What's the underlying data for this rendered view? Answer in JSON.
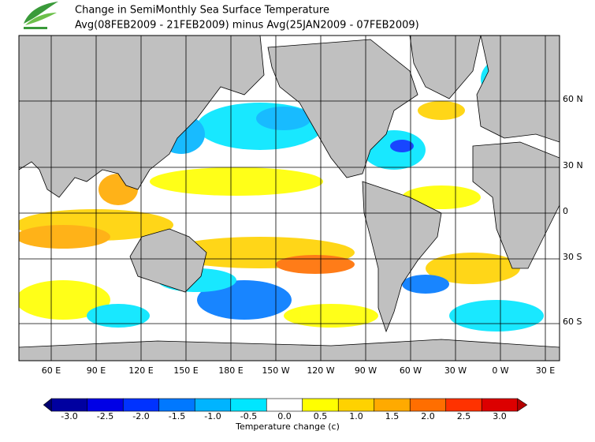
{
  "header": {
    "title": "Change in SemiMonthly Sea Surface Temperature",
    "subtitle": "Avg(08FEB2009 - 21FEB2009) minus Avg(25JAN2009 - 07FEB2009)"
  },
  "map": {
    "lon_labels": [
      "60 E",
      "90 E",
      "120 E",
      "150 E",
      "180 E",
      "150 W",
      "120 W",
      "90 W",
      "60 W",
      "30 W",
      "0 W",
      "30 E"
    ],
    "lat_labels": [
      "60 N",
      "30 N",
      "0",
      "30 S",
      "60 S"
    ]
  },
  "colorbar": {
    "colors": [
      "#000070",
      "#0000a0",
      "#0000e6",
      "#0032ff",
      "#0078ff",
      "#00b4ff",
      "#00e6ff",
      "#ffffff",
      "#ffff00",
      "#ffd200",
      "#ffaa00",
      "#ff6e00",
      "#ff3200",
      "#dc0000",
      "#b40000"
    ],
    "tick_labels": [
      "-3.0",
      "-2.5",
      "-2.0",
      "-1.5",
      "-1.0",
      "-0.5",
      "0.0",
      "0.5",
      "1.0",
      "1.5",
      "2.0",
      "2.5",
      "3.0"
    ],
    "label": "Temperature change  (c)"
  }
}
